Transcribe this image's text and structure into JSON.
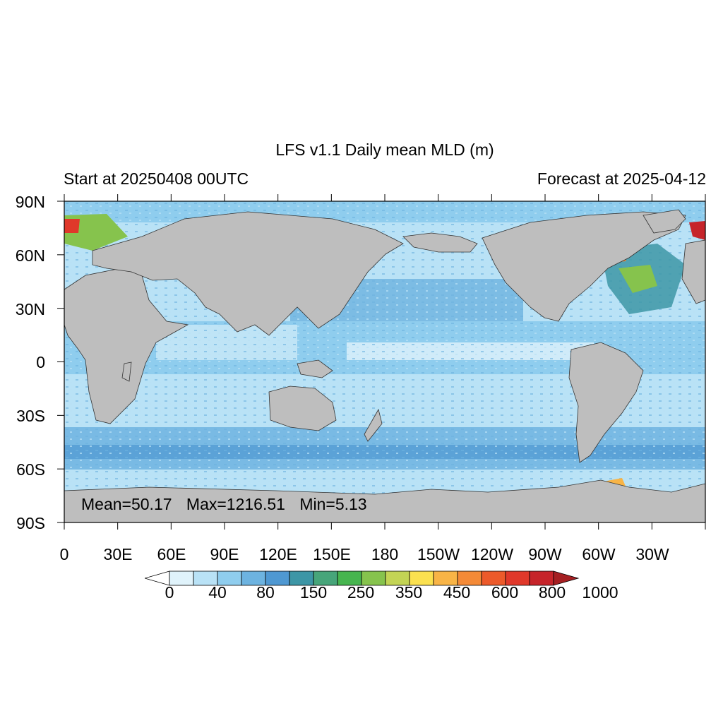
{
  "title": "LFS v1.1 Daily mean MLD (m)",
  "left_subtitle": "Start at 20250408 00UTC",
  "right_subtitle": "Forecast at 2025-04-12",
  "lat_labels": [
    "90N",
    "60N",
    "30N",
    "0",
    "30S",
    "60S",
    "90S"
  ],
  "lon_labels": [
    "0",
    "30E",
    "60E",
    "90E",
    "120E",
    "150E",
    "180",
    "150W",
    "120W",
    "90W",
    "60W",
    "30W"
  ],
  "stats": {
    "mean": "Mean=50.17",
    "max": "Max=1216.51",
    "min": "Min=5.13"
  },
  "colorbar": {
    "labels": [
      "0",
      "40",
      "80",
      "150",
      "250",
      "350",
      "450",
      "600",
      "800",
      "1000"
    ],
    "colors": [
      "#ffffff",
      "#e0f3fb",
      "#b9e2f6",
      "#8fcdee",
      "#6db3e0",
      "#4f98d2",
      "#3d96a6",
      "#47a57a",
      "#47b54f",
      "#86c34d",
      "#c3d455",
      "#fbe150",
      "#f8b446",
      "#f48a37",
      "#ec5a2a",
      "#e0382a",
      "#c6242a",
      "#a51f22"
    ]
  },
  "colors": {
    "land": "#bebebe",
    "ocean_light": "#e0f3fb",
    "ocean_mid": "#8fcdee",
    "ocean_deep": "#6db3e0"
  }
}
